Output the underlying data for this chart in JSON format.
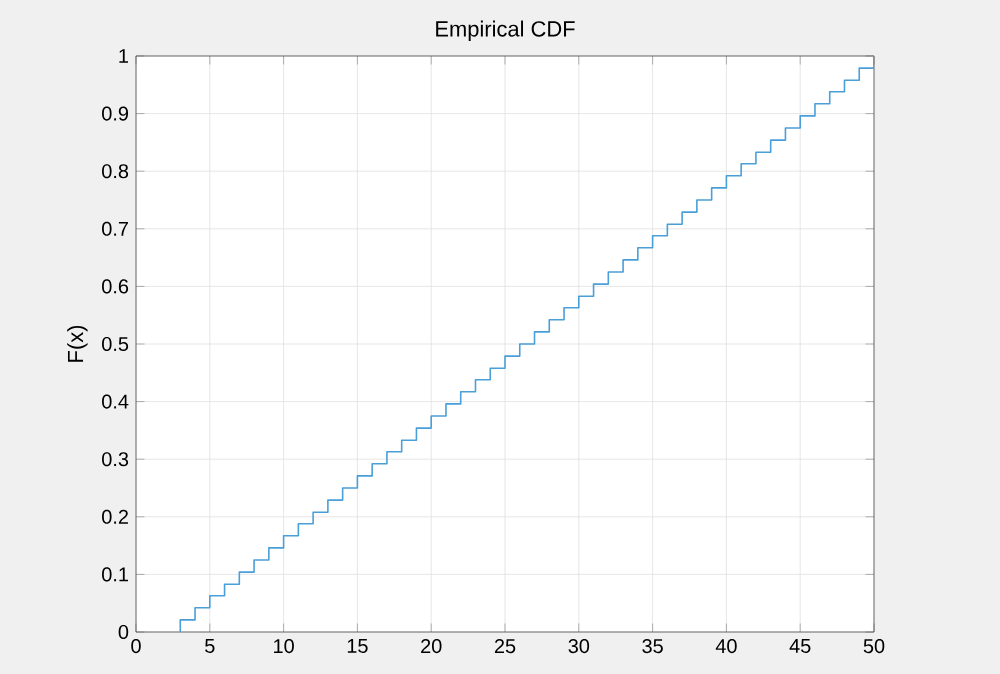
{
  "chart_data": {
    "type": "step",
    "title": "Empirical CDF",
    "ylabel": "F(x)",
    "x": [
      3,
      3,
      4,
      5,
      6,
      7,
      8,
      9,
      10,
      11,
      12,
      13,
      14,
      15,
      16,
      17,
      18,
      19,
      20,
      21,
      22,
      23,
      24,
      25,
      26,
      27,
      28,
      29,
      30,
      31,
      32,
      33,
      34,
      35,
      36,
      37,
      38,
      39,
      40,
      41,
      42,
      43,
      44,
      45,
      46,
      47,
      48,
      49,
      50
    ],
    "series": [
      {
        "color": "#4a9fd8",
        "values": [
          0,
          0.021,
          0.042,
          0.063,
          0.083,
          0.104,
          0.125,
          0.146,
          0.167,
          0.188,
          0.208,
          0.229,
          0.25,
          0.271,
          0.292,
          0.313,
          0.333,
          0.354,
          0.375,
          0.396,
          0.417,
          0.438,
          0.458,
          0.479,
          0.5,
          0.521,
          0.542,
          0.563,
          0.583,
          0.604,
          0.625,
          0.646,
          0.667,
          0.688,
          0.708,
          0.729,
          0.75,
          0.771,
          0.792,
          0.813,
          0.833,
          0.854,
          0.875,
          0.896,
          0.917,
          0.938,
          0.958,
          0.979,
          1
        ]
      }
    ],
    "xlim": [
      0,
      50
    ],
    "ylim": [
      0,
      1
    ],
    "xticks": [
      0,
      5,
      10,
      15,
      20,
      25,
      30,
      35,
      40,
      45,
      50
    ],
    "yticks": [
      0,
      0.1,
      0.2,
      0.3,
      0.4,
      0.5,
      0.6,
      0.7,
      0.8,
      0.9,
      1
    ],
    "grid": true,
    "marker": "none",
    "line_style": "solid"
  }
}
